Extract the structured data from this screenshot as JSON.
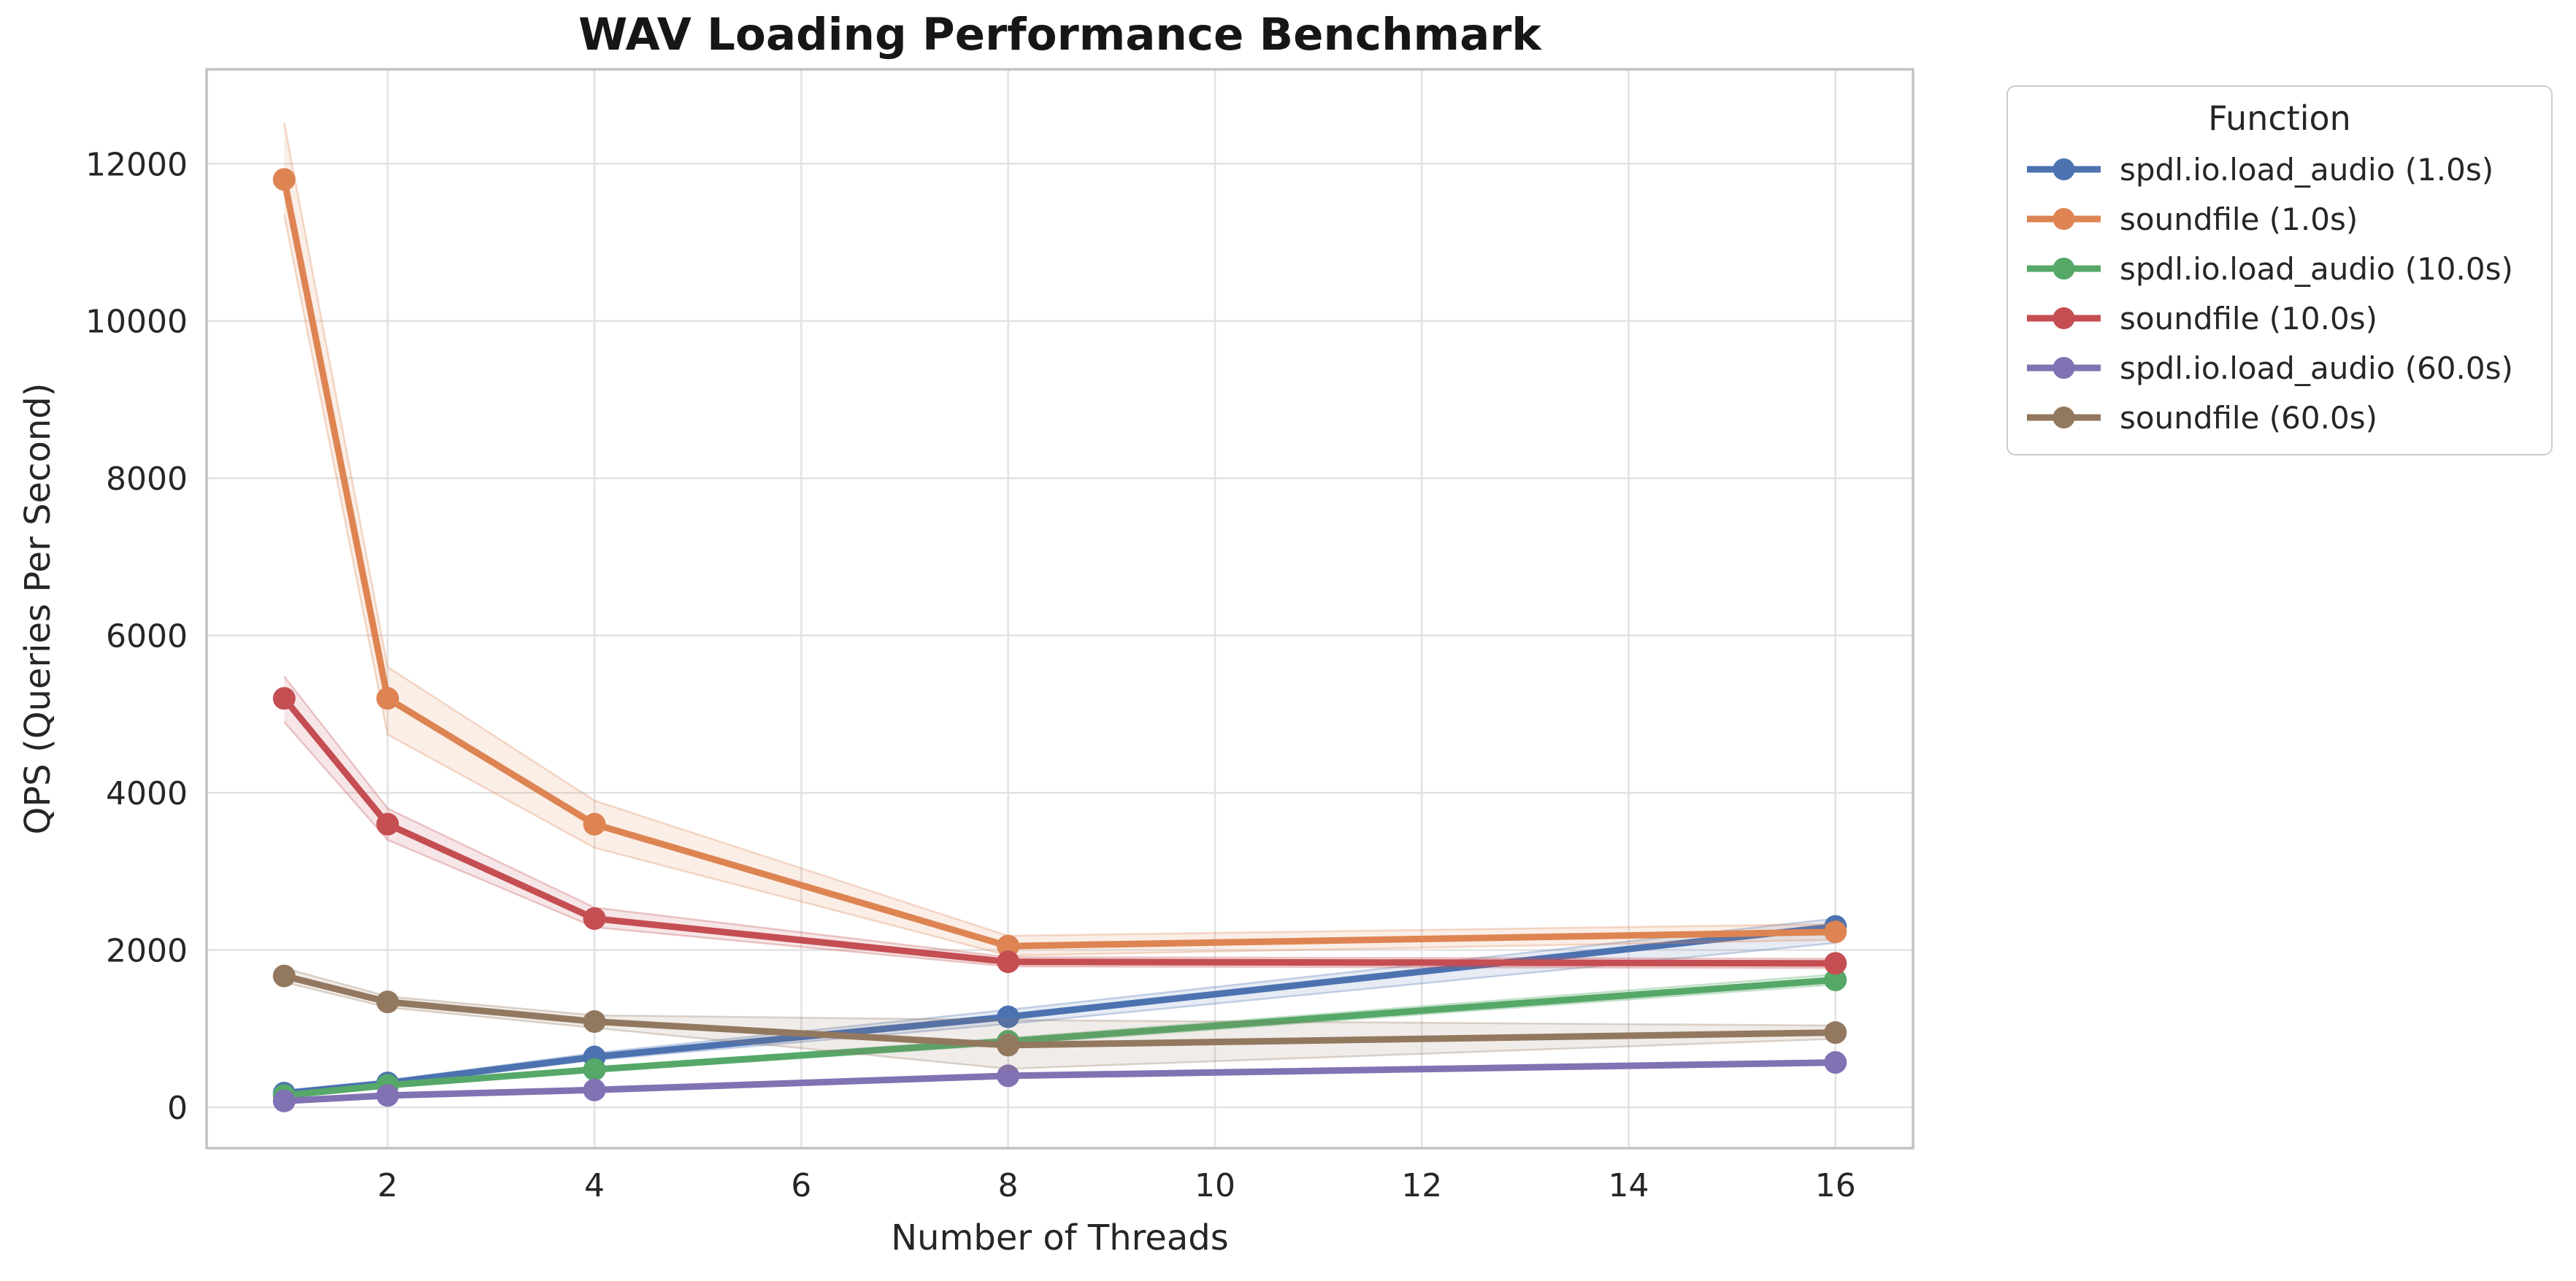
{
  "chart_data": {
    "type": "line",
    "title": "WAV Loading Performance Benchmark",
    "xlabel": "Number of Threads",
    "ylabel": "QPS (Queries Per Second)",
    "x": [
      1,
      2,
      4,
      8,
      16
    ],
    "xticks": [
      2,
      4,
      6,
      8,
      10,
      12,
      14,
      16
    ],
    "yticks": [
      0,
      2000,
      4000,
      6000,
      8000,
      10000,
      12000
    ],
    "xlim": [
      0.25,
      16.75
    ],
    "ylim": [
      -520,
      13200
    ],
    "grid": true,
    "grid_color": "#e2e2e2",
    "spine_color": "#c2c2c2",
    "text_color": "#262626",
    "legend": {
      "title": "Function",
      "position": "outside-right"
    },
    "series": [
      {
        "name": "spdl.io.load_audio (1.0s)",
        "color": "#4C72B0",
        "values": [
          180,
          310,
          640,
          1150,
          2300
        ],
        "band_low": [
          150,
          280,
          600,
          1060,
          2090
        ],
        "band_high": [
          210,
          340,
          690,
          1240,
          2400
        ]
      },
      {
        "name": "soundfile (1.0s)",
        "color": "#DD8452",
        "values": [
          11800,
          5200,
          3600,
          2050,
          2230
        ],
        "band_low": [
          11350,
          4740,
          3300,
          1930,
          2130
        ],
        "band_high": [
          12520,
          5600,
          3900,
          2180,
          2330
        ]
      },
      {
        "name": "spdl.io.load_audio (10.0s)",
        "color": "#55A868",
        "values": [
          150,
          280,
          480,
          840,
          1620
        ],
        "band_low": [
          130,
          260,
          450,
          800,
          1560
        ],
        "band_high": [
          170,
          300,
          510,
          880,
          1690
        ]
      },
      {
        "name": "soundfile (10.0s)",
        "color": "#C44E52",
        "values": [
          5200,
          3600,
          2400,
          1850,
          1830
        ],
        "band_low": [
          4900,
          3400,
          2290,
          1790,
          1770
        ],
        "band_high": [
          5480,
          3800,
          2540,
          1910,
          1890
        ]
      },
      {
        "name": "spdl.io.load_audio (60.0s)",
        "color": "#8172B3",
        "values": [
          80,
          150,
          220,
          400,
          570
        ],
        "band_low": [
          70,
          140,
          210,
          380,
          550
        ],
        "band_high": [
          90,
          160,
          230,
          420,
          590
        ]
      },
      {
        "name": "soundfile (60.0s)",
        "color": "#937860",
        "values": [
          1670,
          1340,
          1090,
          790,
          950
        ],
        "band_low": [
          1590,
          1270,
          1010,
          490,
          870
        ],
        "band_high": [
          1770,
          1410,
          1170,
          1110,
          1040
        ]
      }
    ]
  }
}
